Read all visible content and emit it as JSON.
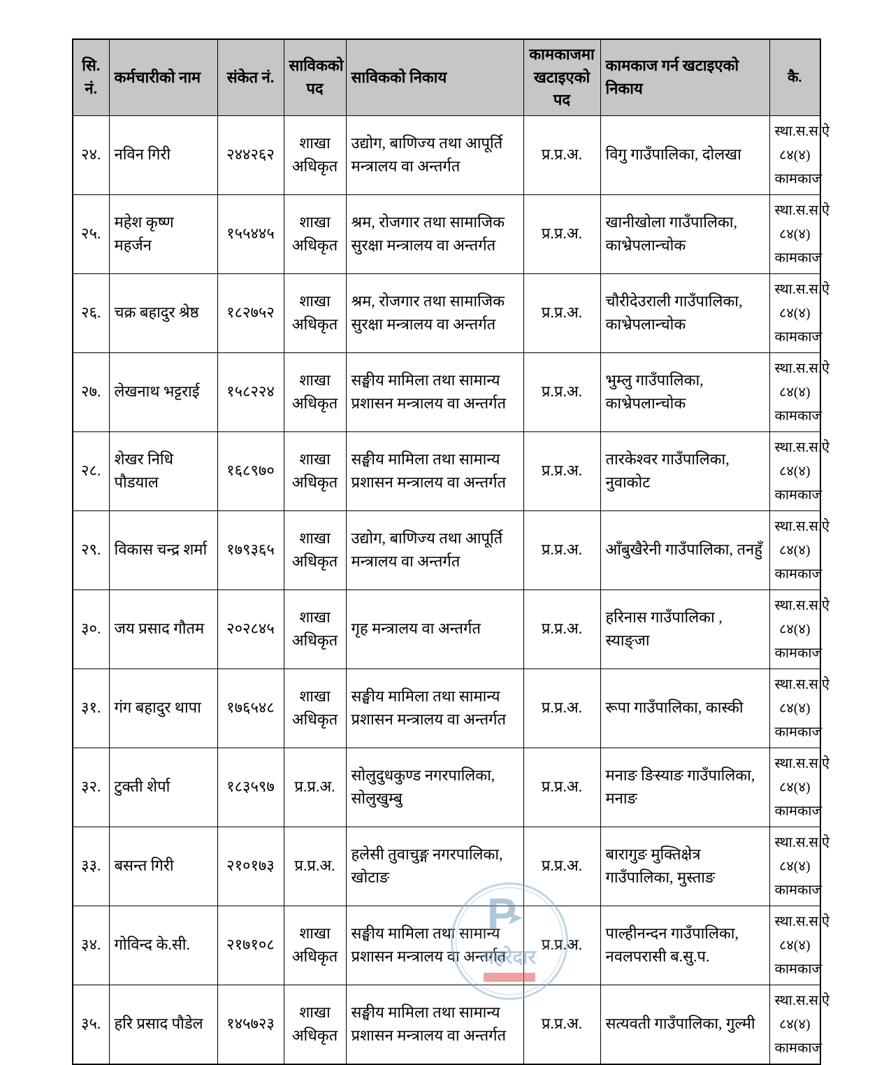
{
  "table": {
    "columns": [
      {
        "key": "sn",
        "label": "सि. नं."
      },
      {
        "key": "name",
        "label": "कर्मचारीको नाम"
      },
      {
        "key": "code",
        "label": "संकेत नं."
      },
      {
        "key": "prev_post",
        "label": "साविकको पद"
      },
      {
        "key": "prev_agency",
        "label": "साविकको निकाय"
      },
      {
        "key": "assigned_post",
        "label": "कामकाजमा खटाइएको पद"
      },
      {
        "key": "assigned_agency",
        "label": "कामकाज गर्न खटाइएको निकाय"
      },
      {
        "key": "remarks",
        "label": "कै."
      }
    ],
    "rows": [
      {
        "sn": "२४.",
        "name": "नविन गिरी",
        "code": "२४४२६२",
        "prev_post": "शाखा अधिकृत",
        "prev_agency": "उद्योग, बाणिज्य तथा आपूर्ति मन्त्रालय वा अन्तर्गत",
        "assigned_post": "प्र.प्र.अ.",
        "assigned_agency": "विगु गाउँपालिका, दोलखा",
        "remarks": "स्था.स.स.ऐ ८४(४) कामकाज"
      },
      {
        "sn": "२५.",
        "name": "महेश कृष्ण महर्जन",
        "code": "१५५४४५",
        "prev_post": "शाखा अधिकृत",
        "prev_agency": "श्रम, रोजगार तथा सामाजिक सुरक्षा मन्त्रालय वा अन्तर्गत",
        "assigned_post": "प्र.प्र.अ.",
        "assigned_agency": "खानीखोला गाउँपालिका, काभ्रेपलान्चोक",
        "remarks": "स्था.स.स.ऐ ८४(४) कामकाज"
      },
      {
        "sn": "२६.",
        "name": "चक्र बहादुर श्रेष्ठ",
        "code": "१८२७५२",
        "prev_post": "शाखा अधिकृत",
        "prev_agency": "श्रम, रोजगार तथा सामाजिक सुरक्षा मन्त्रालय वा अन्तर्गत",
        "assigned_post": "प्र.प्र.अ.",
        "assigned_agency": "चौरीदेउराली गाउँपालिका, काभ्रेपलान्चोक",
        "remarks": "स्था.स.स.ऐ ८४(४) कामकाज"
      },
      {
        "sn": "२७.",
        "name": "लेखनाथ भट्टराई",
        "code": "१५८२२४",
        "prev_post": "शाखा अधिकृत",
        "prev_agency": "सङ्घीय मामिला तथा सामान्य प्रशासन मन्त्रालय वा अन्तर्गत",
        "assigned_post": "प्र.प्र.अ.",
        "assigned_agency": "भुम्लु गाउँपालिका, काभ्रेपलान्चोक",
        "remarks": "स्था.स.स.ऐ ८४(४) कामकाज"
      },
      {
        "sn": "२८.",
        "name": "शेखर निधि पौडयाल",
        "code": "१६८९७०",
        "prev_post": "शाखा अधिकृत",
        "prev_agency": "सङ्घीय मामिला तथा सामान्य प्रशासन मन्त्रालय वा अन्तर्गत",
        "assigned_post": "प्र.प्र.अ.",
        "assigned_agency": "तारकेश्वर गाउँपालिका, नुवाकोट",
        "remarks": "स्था.स.स.ऐ ८४(४) कामकाज"
      },
      {
        "sn": "२९.",
        "name": "विकास चन्द्र शर्मा",
        "code": "१७९३६५",
        "prev_post": "शाखा अधिकृत",
        "prev_agency": "उद्योग, बाणिज्य तथा आपूर्ति मन्त्रालय वा अन्तर्गत",
        "assigned_post": "प्र.प्र.अ.",
        "assigned_agency": "आँबुखैरेनी गाउँपालिका, तनहुँ",
        "remarks": "स्था.स.स.ऐ ८४(४) कामकाज"
      },
      {
        "sn": "३०.",
        "name": "जय प्रसाद गौतम",
        "code": "२०२८४५",
        "prev_post": "शाखा अधिकृत",
        "prev_agency": "गृह मन्त्रालय वा अन्तर्गत",
        "assigned_post": "प्र.प्र.अ.",
        "assigned_agency": "हरिनास गाउँपालिका , स्याङ्जा",
        "remarks": "स्था.स.स.ऐ ८४(४) कामकाज"
      },
      {
        "sn": "३१.",
        "name": "गंग बहादुर थापा",
        "code": "१७६५४८",
        "prev_post": "शाखा अधिकृत",
        "prev_agency": "सङ्घीय मामिला तथा सामान्य प्रशासन मन्त्रालय वा अन्तर्गत",
        "assigned_post": "प्र.प्र.अ.",
        "assigned_agency": "रूपा गाउँपालिका, कास्की",
        "remarks": "स्था.स.स.ऐ ८४(४) कामकाज"
      },
      {
        "sn": "३२.",
        "name": "टुक्ती शेर्पा",
        "code": "१८३५९७",
        "prev_post": "प्र.प्र.अ.",
        "prev_agency": "सोलुदुधकुण्ड नगरपालिका, सोलुखुम्बु",
        "assigned_post": "प्र.प्र.अ.",
        "assigned_agency": "मनाङ ङिस्याङ गाउँपालिका, मनाङ",
        "remarks": "स्था.स.स.ऐ ८४(४) कामकाज"
      },
      {
        "sn": "३३.",
        "name": "बसन्त गिरी",
        "code": "२१०१७३",
        "prev_post": "प्र.प्र.अ.",
        "prev_agency": "हलेसी तुवाचुङ्ग नगरपालिका, खोटाङ",
        "assigned_post": "प्र.प्र.अ.",
        "assigned_agency": "बारागुङ मुक्तिक्षेत्र गाउँपालिका, मुस्ताङ",
        "remarks": "स्था.स.स.ऐ ८४(४) कामकाज"
      },
      {
        "sn": "३४.",
        "name": "गोविन्द के.सी.",
        "code": "२१७१०८",
        "prev_post": "शाखा अधिकृत",
        "prev_agency": "सङ्घीय मामिला तथा सामान्य प्रशासन मन्त्रालय वा अन्तर्गत",
        "assigned_post": "प्र.प्र.अ.",
        "assigned_agency": "पाल्हीनन्दन गाउँपालिका, नवलपरासी ब.सु.प.",
        "remarks": "स्था.स.स.ऐ ८४(४) कामकाज"
      },
      {
        "sn": "३५.",
        "name": "हरि प्रसाद पौडेल",
        "code": "१४५७२३",
        "prev_post": "शाखा अधिकृत",
        "prev_agency": "सङ्घीय मामिला तथा सामान्य प्रशासन मन्त्रालय वा अन्तर्गत",
        "assigned_post": "प्र.प्र.अ.",
        "assigned_agency": "सत्यवती गाउँपालिका, गुल्मी",
        "remarks": "स्था.स.स.ऐ ८४(४) कामकाज"
      }
    ]
  },
  "watermark": {
    "letter": "P",
    "label": "पहरेदार"
  },
  "colors": {
    "header_bg": "#c6c6c6",
    "border": "#000000",
    "watermark_blue": "#8fb3cc",
    "watermark_red": "#e05656"
  }
}
